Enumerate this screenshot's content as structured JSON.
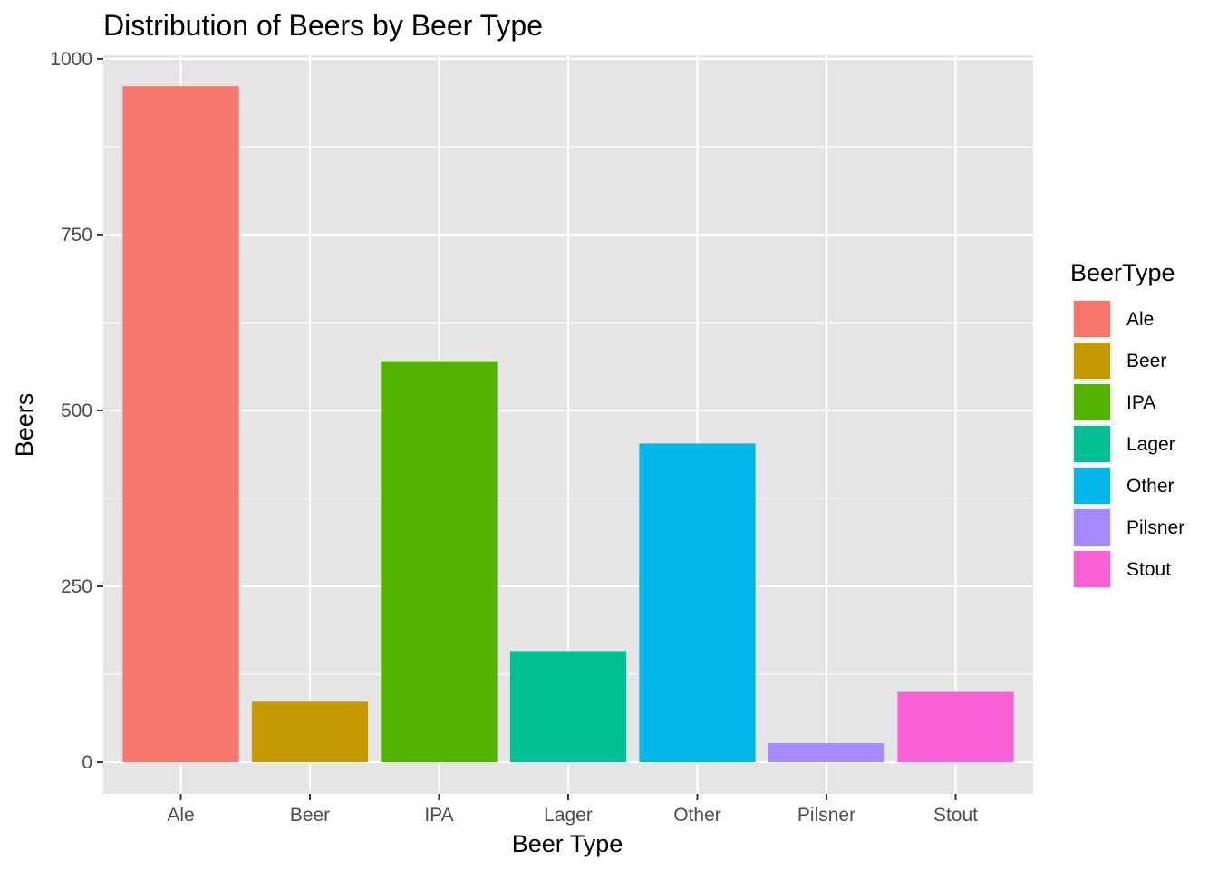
{
  "chart_data": {
    "type": "bar",
    "title": "Distribution of Beers by Beer Type",
    "xlabel": "Beer Type",
    "ylabel": "Beers",
    "categories": [
      "Ale",
      "Beer",
      "IPA",
      "Lager",
      "Other",
      "Pilsner",
      "Stout"
    ],
    "values": [
      961,
      86,
      570,
      158,
      453,
      27,
      100
    ],
    "colors": [
      "#F8766D",
      "#C49A00",
      "#53B400",
      "#00C094",
      "#00B6EB",
      "#A58AFF",
      "#FB61D7"
    ],
    "ylim": [
      -45,
      1005
    ],
    "yticks": [
      0,
      250,
      500,
      750,
      1000
    ],
    "ytick_labels": [
      "0",
      "250",
      "500",
      "750",
      "1000"
    ],
    "grid": true,
    "legend": {
      "title": "BeerType",
      "position": "right",
      "entries": [
        "Ale",
        "Beer",
        "IPA",
        "Lager",
        "Other",
        "Pilsner",
        "Stout"
      ]
    },
    "panel_color": "#E5E5E5"
  }
}
